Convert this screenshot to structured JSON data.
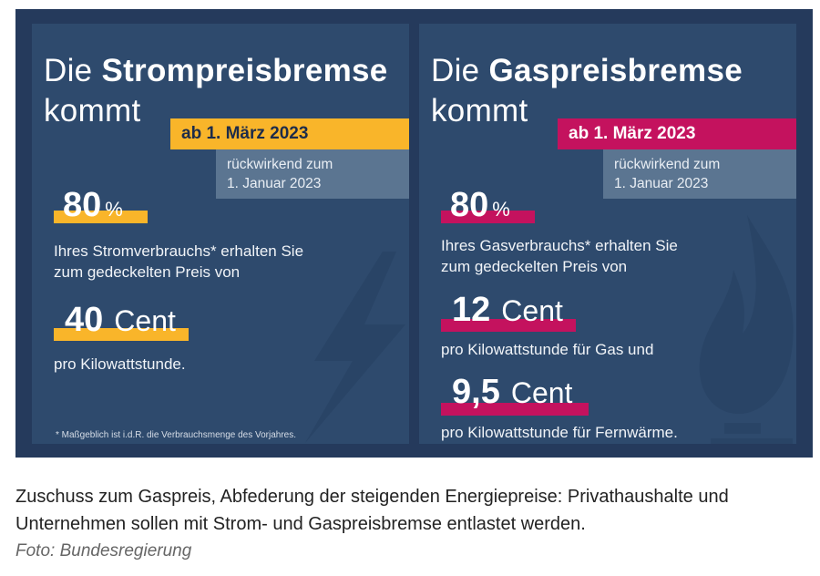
{
  "strom": {
    "title_regular": "Die ",
    "title_bold": "Strompreisbremse",
    "title_line2": "kommt",
    "date_badge": "ab 1. März 2023",
    "retro_line1": "rückwirkend zum",
    "retro_line2": "1. Januar 2023",
    "percent_value": "80",
    "percent_unit": "%",
    "consumption_line1": "Ihres Stromverbrauchs* erhalten Sie",
    "consumption_line2": "zum gedeckelten Preis von",
    "price_value": "40",
    "price_unit": "Cent",
    "price_desc": "pro Kilowattstunde.",
    "footnote": "* Maßgeblich ist i.d.R. die Verbrauchsmenge des Vorjahres.",
    "accent_color": "#f9b52a",
    "background_icon": "lightning-bolt-icon"
  },
  "gas": {
    "title_regular": "Die ",
    "title_bold": "Gaspreisbremse",
    "title_line2": "kommt",
    "date_badge": "ab 1. März 2023",
    "retro_line1": "rückwirkend zum",
    "retro_line2": "1. Januar 2023",
    "percent_value": "80",
    "percent_unit": "%",
    "consumption_line1": "Ihres Gasverbrauchs* erhalten Sie",
    "consumption_line2": "zum gedeckelten Preis von",
    "gas_price_value": "12",
    "gas_price_unit": "Cent",
    "gas_price_desc": "pro Kilowattstunde für Gas und",
    "heat_price_value": "9,5",
    "heat_price_unit": "Cent",
    "heat_price_desc": "pro Kilowattstunde für Fernwärme.",
    "accent_color": "#c4125e",
    "background_icon": "gas-flame-icon"
  },
  "caption": {
    "text_line1": "Zuschuss zum Gaspreis, Abfederung der steigenden Energiepreise: Privathaushalte und",
    "text_line2": "Unternehmen sollen mit Strom- und Gaspreisbremse entlastet werden.",
    "credit": "Foto: Bundesregierung"
  },
  "colors": {
    "outer_background": "#253a5c",
    "panel_background": "#2e4a6d",
    "retro_box": "#5b7591"
  }
}
